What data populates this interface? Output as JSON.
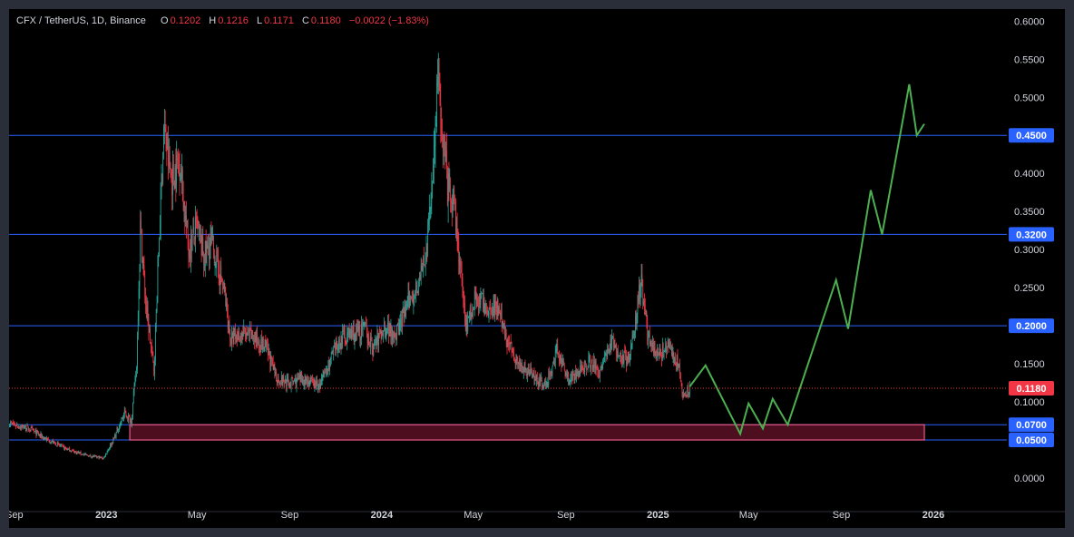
{
  "legend": {
    "symbol": "CFX / TetherUS, 1D, Binance",
    "o_label": "O",
    "o_value": "0.1202",
    "h_label": "H",
    "h_value": "0.1216",
    "l_label": "L",
    "l_value": "0.1171",
    "c_label": "C",
    "c_value": "0.1180",
    "change": "−0.0022 (−1.83%)"
  },
  "colors": {
    "up": "#26a69a",
    "down": "#f23645",
    "level_line": "#2962ff",
    "zone_fill": "#5a1226",
    "zone_border": "#e85a86",
    "projection": "#4caf50",
    "last_price": "#f23645"
  },
  "chart_data": {
    "type": "candlestick",
    "title": "",
    "y_ticks": [
      "0.6000",
      "0.5500",
      "0.5000",
      "0.4500",
      "0.4000",
      "0.3500",
      "0.3000",
      "0.2500",
      "0.2000",
      "0.1500",
      "0.1000",
      "0.0000"
    ],
    "x_ticks": [
      {
        "label": "Sep",
        "date": "2022-09-01",
        "bold": false
      },
      {
        "label": "2023",
        "date": "2023-01-01",
        "bold": true
      },
      {
        "label": "May",
        "date": "2023-05-01",
        "bold": false
      },
      {
        "label": "Sep",
        "date": "2023-09-01",
        "bold": false
      },
      {
        "label": "2024",
        "date": "2024-01-01",
        "bold": true
      },
      {
        "label": "May",
        "date": "2024-05-01",
        "bold": false
      },
      {
        "label": "Sep",
        "date": "2024-09-01",
        "bold": false
      },
      {
        "label": "2025",
        "date": "2025-01-01",
        "bold": true
      },
      {
        "label": "May",
        "date": "2025-05-01",
        "bold": false
      },
      {
        "label": "Sep",
        "date": "2025-09-01",
        "bold": false
      },
      {
        "label": "2026",
        "date": "2026-01-01",
        "bold": true
      }
    ],
    "price_series": [
      [
        "2022-08-25",
        0.072
      ],
      [
        "2022-09-20",
        0.065
      ],
      [
        "2022-10-15",
        0.05
      ],
      [
        "2022-11-10",
        0.038
      ],
      [
        "2022-12-05",
        0.03
      ],
      [
        "2022-12-28",
        0.026
      ],
      [
        "2023-01-10",
        0.05
      ],
      [
        "2023-01-25",
        0.085
      ],
      [
        "2023-02-03",
        0.075
      ],
      [
        "2023-02-10",
        0.15
      ],
      [
        "2023-02-15",
        0.33
      ],
      [
        "2023-02-22",
        0.23
      ],
      [
        "2023-03-05",
        0.14
      ],
      [
        "2023-03-12",
        0.32
      ],
      [
        "2023-03-18",
        0.46
      ],
      [
        "2023-03-28",
        0.39
      ],
      [
        "2023-04-08",
        0.42
      ],
      [
        "2023-04-20",
        0.3
      ],
      [
        "2023-05-01",
        0.33
      ],
      [
        "2023-05-10",
        0.29
      ],
      [
        "2023-05-20",
        0.31
      ],
      [
        "2023-06-05",
        0.25
      ],
      [
        "2023-06-15",
        0.18
      ],
      [
        "2023-06-30",
        0.19
      ],
      [
        "2023-07-15",
        0.185
      ],
      [
        "2023-08-01",
        0.17
      ],
      [
        "2023-08-15",
        0.13
      ],
      [
        "2023-09-01",
        0.125
      ],
      [
        "2023-09-20",
        0.13
      ],
      [
        "2023-10-10",
        0.12
      ],
      [
        "2023-10-25",
        0.155
      ],
      [
        "2023-11-10",
        0.185
      ],
      [
        "2023-11-25",
        0.19
      ],
      [
        "2023-12-10",
        0.195
      ],
      [
        "2023-12-20",
        0.17
      ],
      [
        "2024-01-05",
        0.2
      ],
      [
        "2024-01-20",
        0.19
      ],
      [
        "2024-02-05",
        0.23
      ],
      [
        "2024-02-20",
        0.26
      ],
      [
        "2024-03-01",
        0.3
      ],
      [
        "2024-03-10",
        0.43
      ],
      [
        "2024-03-15",
        0.52
      ],
      [
        "2024-03-20",
        0.47
      ],
      [
        "2024-03-28",
        0.38
      ],
      [
        "2024-04-08",
        0.34
      ],
      [
        "2024-04-15",
        0.26
      ],
      [
        "2024-04-22",
        0.2
      ],
      [
        "2024-05-05",
        0.24
      ],
      [
        "2024-05-20",
        0.22
      ],
      [
        "2024-06-01",
        0.23
      ],
      [
        "2024-06-15",
        0.18
      ],
      [
        "2024-07-01",
        0.15
      ],
      [
        "2024-07-15",
        0.14
      ],
      [
        "2024-08-05",
        0.12
      ],
      [
        "2024-08-20",
        0.165
      ],
      [
        "2024-09-05",
        0.13
      ],
      [
        "2024-09-20",
        0.14
      ],
      [
        "2024-10-01",
        0.155
      ],
      [
        "2024-10-15",
        0.14
      ],
      [
        "2024-11-01",
        0.18
      ],
      [
        "2024-11-12",
        0.16
      ],
      [
        "2024-11-25",
        0.155
      ],
      [
        "2024-12-05",
        0.23
      ],
      [
        "2024-12-10",
        0.26
      ],
      [
        "2024-12-18",
        0.19
      ],
      [
        "2024-12-30",
        0.16
      ],
      [
        "2025-01-15",
        0.17
      ],
      [
        "2025-01-28",
        0.15
      ],
      [
        "2025-02-03",
        0.105
      ],
      [
        "2025-02-12",
        0.118
      ]
    ],
    "projection": [
      [
        "2025-02-12",
        0.12
      ],
      [
        "2025-03-05",
        0.148
      ],
      [
        "2025-04-20",
        0.058
      ],
      [
        "2025-05-01",
        0.098
      ],
      [
        "2025-05-20",
        0.065
      ],
      [
        "2025-06-02",
        0.104
      ],
      [
        "2025-06-22",
        0.07
      ],
      [
        "2025-08-25",
        0.26
      ],
      [
        "2025-09-10",
        0.196
      ],
      [
        "2025-10-10",
        0.378
      ],
      [
        "2025-10-25",
        0.32
      ],
      [
        "2025-11-30",
        0.517
      ],
      [
        "2025-12-10",
        0.45
      ],
      [
        "2025-12-20",
        0.465
      ]
    ],
    "horizontal_levels": [
      {
        "value": 0.45,
        "label": "0.4500"
      },
      {
        "value": 0.32,
        "label": "0.3200"
      },
      {
        "value": 0.2,
        "label": "0.2000"
      },
      {
        "value": 0.07,
        "label": "0.0700"
      },
      {
        "value": 0.05,
        "label": "0.0500"
      }
    ],
    "support_zone": {
      "from": 0.05,
      "to": 0.07,
      "start": "2023-02-01",
      "end": "2025-12-20"
    },
    "last_price": {
      "value": 0.118,
      "label": "0.1180"
    }
  }
}
